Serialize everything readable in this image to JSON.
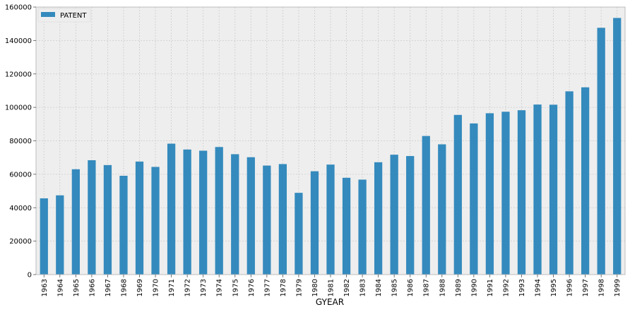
{
  "chart_data": {
    "type": "bar",
    "xlabel": "GYEAR",
    "ylabel": "",
    "title": "",
    "ylim": [
      0,
      160000
    ],
    "yticks": [
      0,
      20000,
      40000,
      60000,
      80000,
      100000,
      120000,
      140000,
      160000
    ],
    "grid": true,
    "legend_position": "top-left",
    "colors": {
      "bar": "#348ABD",
      "plot_bg": "#EEEEEE",
      "grid": "#CCCCCC",
      "frame": "#BCBCBC"
    },
    "categories": [
      "1963",
      "1964",
      "1965",
      "1966",
      "1967",
      "1968",
      "1969",
      "1970",
      "1971",
      "1972",
      "1973",
      "1974",
      "1975",
      "1976",
      "1977",
      "1978",
      "1979",
      "1980",
      "1981",
      "1982",
      "1983",
      "1984",
      "1985",
      "1986",
      "1987",
      "1988",
      "1989",
      "1990",
      "1991",
      "1992",
      "1993",
      "1994",
      "1995",
      "1996",
      "1997",
      "1998",
      "1999"
    ],
    "series": [
      {
        "name": "PATENT",
        "values": [
          45600,
          47400,
          63000,
          68400,
          65500,
          59100,
          67600,
          64400,
          78300,
          74800,
          74100,
          76300,
          72000,
          70200,
          65200,
          66100,
          48900,
          61800,
          65800,
          57900,
          56800,
          67200,
          71700,
          70900,
          82900,
          77900,
          95500,
          90400,
          96500,
          97400,
          98300,
          101700,
          101600,
          109600,
          112000,
          147600,
          153500
        ]
      }
    ]
  }
}
